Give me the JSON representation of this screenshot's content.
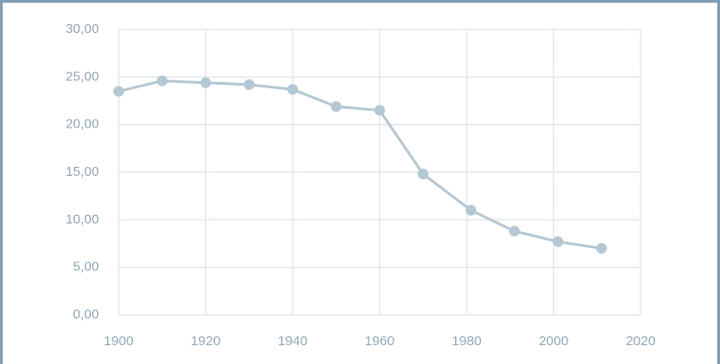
{
  "chart_data": {
    "type": "line",
    "x": [
      1900,
      1910,
      1920,
      1930,
      1940,
      1950,
      1960,
      1970,
      1981,
      1991,
      2001,
      2011
    ],
    "values": [
      23.5,
      24.6,
      24.4,
      24.2,
      23.7,
      21.9,
      21.5,
      14.8,
      11.0,
      8.8,
      7.7,
      7.0
    ],
    "color": "#b4c8d4",
    "xlim": [
      1900,
      2020
    ],
    "xticks": [
      1900,
      1920,
      1940,
      1960,
      1980,
      2000,
      2020
    ],
    "ylim": [
      0,
      30
    ],
    "yticks": [
      {
        "value": 0,
        "label": "0,00"
      },
      {
        "value": 5,
        "label": "5,00"
      },
      {
        "value": 10,
        "label": "10,00"
      },
      {
        "value": 15,
        "label": "15,00"
      },
      {
        "value": 20,
        "label": "20,00"
      },
      {
        "value": 25,
        "label": "25,00"
      },
      {
        "value": 30,
        "label": "30,00"
      }
    ],
    "grid": true
  }
}
